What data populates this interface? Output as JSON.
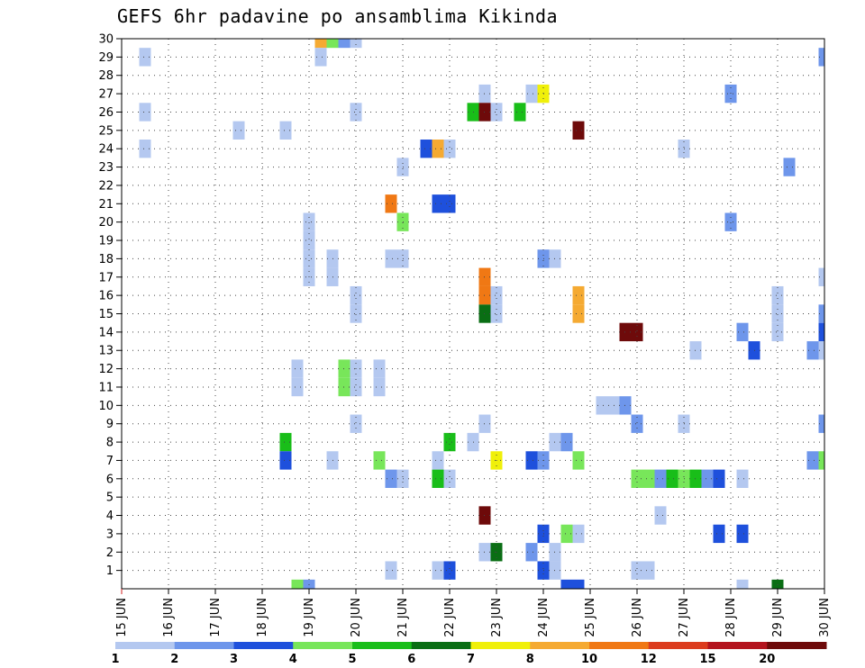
{
  "chart_data": {
    "type": "heatmap",
    "title": "GEFS 6hr padavine po ansamblima Kikinda",
    "members": [
      1,
      2,
      3,
      4,
      5,
      6,
      7,
      8,
      9,
      10,
      11,
      12,
      13,
      14,
      15,
      16,
      17,
      18,
      19,
      20,
      21,
      22,
      23,
      24,
      25,
      26,
      27,
      28,
      29,
      30
    ],
    "date_ticks": [
      "15 JUN",
      "16 JUN",
      "17 JUN",
      "18 JUN",
      "19 JUN",
      "20 JUN",
      "21 JUN",
      "22 JUN",
      "23 JUN",
      "24 JUN",
      "25 JUN",
      "26 JUN",
      "27 JUN",
      "28 JUN",
      "29 JUN",
      "30 JUN"
    ],
    "x_range_days": [
      0,
      15
    ],
    "legend": {
      "labels": [
        "1",
        "2",
        "3",
        "4",
        "5",
        "6",
        "7",
        "8",
        "10",
        "12",
        "15",
        "20"
      ],
      "colors": [
        "#b4c8f0",
        "#6e96eb",
        "#1e50dc",
        "#78e65a",
        "#19be19",
        "#0a6e14",
        "#f0f00a",
        "#f5aa32",
        "#f07814",
        "#dc3c1e",
        "#b4141e",
        "#6e0a0a"
      ]
    },
    "cells": [
      {
        "m": 30,
        "t": 4.25,
        "c": 8
      },
      {
        "m": 30,
        "t": 4.5,
        "c": 4
      },
      {
        "m": 30,
        "t": 4.75,
        "c": 2
      },
      {
        "m": 30,
        "t": 5.0,
        "c": 1
      },
      {
        "m": 29,
        "t": 0.5,
        "c": 1
      },
      {
        "m": 29,
        "t": 4.25,
        "c": 1
      },
      {
        "m": 29,
        "t": 15.0,
        "c": 2
      },
      {
        "m": 27,
        "t": 7.75,
        "c": 1
      },
      {
        "m": 27,
        "t": 8.75,
        "c": 1
      },
      {
        "m": 27,
        "t": 9.0,
        "c": 7
      },
      {
        "m": 27,
        "t": 13.0,
        "c": 2
      },
      {
        "m": 26,
        "t": 0.5,
        "c": 1
      },
      {
        "m": 26,
        "t": 5.0,
        "c": 1
      },
      {
        "m": 26,
        "t": 7.5,
        "c": 5
      },
      {
        "m": 26,
        "t": 7.75,
        "c": 12
      },
      {
        "m": 26,
        "t": 8.0,
        "c": 1
      },
      {
        "m": 26,
        "t": 8.5,
        "c": 5
      },
      {
        "m": 25,
        "t": 2.5,
        "c": 1
      },
      {
        "m": 25,
        "t": 3.5,
        "c": 1
      },
      {
        "m": 25,
        "t": 9.75,
        "c": 12
      },
      {
        "m": 24,
        "t": 0.5,
        "c": 1
      },
      {
        "m": 24,
        "t": 6.5,
        "c": 3
      },
      {
        "m": 24,
        "t": 6.75,
        "c": 8
      },
      {
        "m": 24,
        "t": 7.0,
        "c": 1
      },
      {
        "m": 24,
        "t": 12.0,
        "c": 1
      },
      {
        "m": 23,
        "t": 6.0,
        "c": 1
      },
      {
        "m": 23,
        "t": 14.25,
        "c": 2
      },
      {
        "m": 21,
        "t": 5.75,
        "c": 9
      },
      {
        "m": 21,
        "t": 6.75,
        "c": 3
      },
      {
        "m": 21,
        "t": 7.0,
        "c": 3
      },
      {
        "m": 20,
        "t": 4.0,
        "c": 1
      },
      {
        "m": 20,
        "t": 6.0,
        "c": 4
      },
      {
        "m": 20,
        "t": 13.0,
        "c": 2
      },
      {
        "m": 19,
        "t": 4.0,
        "c": 1
      },
      {
        "m": 18,
        "t": 5.75,
        "c": 1
      },
      {
        "m": 18,
        "t": 6.0,
        "c": 1
      },
      {
        "m": 18,
        "t": 4.0,
        "c": 1
      },
      {
        "m": 18,
        "t": 4.5,
        "c": 1
      },
      {
        "m": 18,
        "t": 9.0,
        "c": 2
      },
      {
        "m": 18,
        "t": 9.25,
        "c": 1
      },
      {
        "m": 17,
        "t": 4.0,
        "c": 1
      },
      {
        "m": 17,
        "t": 4.5,
        "c": 1
      },
      {
        "m": 17,
        "t": 7.75,
        "c": 9
      },
      {
        "m": 17,
        "t": 15.0,
        "c": 1
      },
      {
        "m": 16,
        "t": 7.75,
        "c": 9
      },
      {
        "m": 16,
        "t": 8.0,
        "c": 1
      },
      {
        "m": 16,
        "t": 5.0,
        "c": 1
      },
      {
        "m": 16,
        "t": 9.75,
        "c": 8
      },
      {
        "m": 16,
        "t": 14.0,
        "c": 1
      },
      {
        "m": 15,
        "t": 7.75,
        "c": 6
      },
      {
        "m": 15,
        "t": 8.0,
        "c": 1
      },
      {
        "m": 15,
        "t": 5.0,
        "c": 1
      },
      {
        "m": 15,
        "t": 9.75,
        "c": 8
      },
      {
        "m": 15,
        "t": 14.0,
        "c": 1
      },
      {
        "m": 15,
        "t": 15.0,
        "c": 2
      },
      {
        "m": 14,
        "t": 10.75,
        "c": 12
      },
      {
        "m": 14,
        "t": 11.0,
        "c": 12
      },
      {
        "m": 14,
        "t": 13.25,
        "c": 2
      },
      {
        "m": 14,
        "t": 14.0,
        "c": 1
      },
      {
        "m": 14,
        "t": 15.0,
        "c": 3
      },
      {
        "m": 13,
        "t": 12.25,
        "c": 1
      },
      {
        "m": 13,
        "t": 13.5,
        "c": 3
      },
      {
        "m": 13,
        "t": 14.75,
        "c": 2
      },
      {
        "m": 13,
        "t": 15.0,
        "c": 1
      },
      {
        "m": 12,
        "t": 3.75,
        "c": 1
      },
      {
        "m": 12,
        "t": 4.75,
        "c": 4
      },
      {
        "m": 12,
        "t": 5.0,
        "c": 1
      },
      {
        "m": 12,
        "t": 5.5,
        "c": 1
      },
      {
        "m": 11,
        "t": 3.75,
        "c": 1
      },
      {
        "m": 11,
        "t": 4.75,
        "c": 4
      },
      {
        "m": 11,
        "t": 5.0,
        "c": 1
      },
      {
        "m": 11,
        "t": 5.5,
        "c": 1
      },
      {
        "m": 10,
        "t": 10.25,
        "c": 1
      },
      {
        "m": 10,
        "t": 10.5,
        "c": 1
      },
      {
        "m": 10,
        "t": 10.75,
        "c": 2
      },
      {
        "m": 9,
        "t": 5.0,
        "c": 1
      },
      {
        "m": 9,
        "t": 7.75,
        "c": 1
      },
      {
        "m": 9,
        "t": 11.0,
        "c": 2
      },
      {
        "m": 9,
        "t": 12.0,
        "c": 1
      },
      {
        "m": 9,
        "t": 15.0,
        "c": 2
      },
      {
        "m": 8,
        "t": 3.5,
        "c": 5
      },
      {
        "m": 8,
        "t": 7.0,
        "c": 5
      },
      {
        "m": 8,
        "t": 7.5,
        "c": 1
      },
      {
        "m": 8,
        "t": 9.25,
        "c": 1
      },
      {
        "m": 8,
        "t": 9.5,
        "c": 2
      },
      {
        "m": 7,
        "t": 3.5,
        "c": 3
      },
      {
        "m": 7,
        "t": 4.5,
        "c": 1
      },
      {
        "m": 7,
        "t": 5.5,
        "c": 4
      },
      {
        "m": 7,
        "t": 6.75,
        "c": 1
      },
      {
        "m": 7,
        "t": 8.0,
        "c": 7
      },
      {
        "m": 7,
        "t": 8.75,
        "c": 3
      },
      {
        "m": 7,
        "t": 9.0,
        "c": 2
      },
      {
        "m": 7,
        "t": 9.75,
        "c": 4
      },
      {
        "m": 7,
        "t": 14.75,
        "c": 2
      },
      {
        "m": 7,
        "t": 15.0,
        "c": 4
      },
      {
        "m": 6,
        "t": 5.75,
        "c": 2
      },
      {
        "m": 6,
        "t": 6.0,
        "c": 1
      },
      {
        "m": 6,
        "t": 6.75,
        "c": 5
      },
      {
        "m": 6,
        "t": 7.0,
        "c": 1
      },
      {
        "m": 6,
        "t": 11.0,
        "c": 4
      },
      {
        "m": 6,
        "t": 11.25,
        "c": 4
      },
      {
        "m": 6,
        "t": 11.5,
        "c": 2
      },
      {
        "m": 6,
        "t": 11.75,
        "c": 5
      },
      {
        "m": 6,
        "t": 12.0,
        "c": 4
      },
      {
        "m": 6,
        "t": 12.25,
        "c": 5
      },
      {
        "m": 6,
        "t": 12.5,
        "c": 2
      },
      {
        "m": 6,
        "t": 12.75,
        "c": 3
      },
      {
        "m": 6,
        "t": 13.25,
        "c": 1
      },
      {
        "m": 4,
        "t": 7.75,
        "c": 12
      },
      {
        "m": 4,
        "t": 11.5,
        "c": 1
      },
      {
        "m": 3,
        "t": 9.0,
        "c": 3
      },
      {
        "m": 3,
        "t": 9.5,
        "c": 4
      },
      {
        "m": 3,
        "t": 9.75,
        "c": 1
      },
      {
        "m": 3,
        "t": 12.75,
        "c": 3
      },
      {
        "m": 3,
        "t": 13.25,
        "c": 3
      },
      {
        "m": 2,
        "t": 7.75,
        "c": 1
      },
      {
        "m": 2,
        "t": 8.0,
        "c": 6
      },
      {
        "m": 2,
        "t": 8.75,
        "c": 2
      },
      {
        "m": 2,
        "t": 9.25,
        "c": 1
      },
      {
        "m": 1,
        "t": 5.75,
        "c": 1
      },
      {
        "m": 1,
        "t": 6.75,
        "c": 1
      },
      {
        "m": 1,
        "t": 7.0,
        "c": 3
      },
      {
        "m": 1,
        "t": 9.0,
        "c": 3
      },
      {
        "m": 1,
        "t": 9.25,
        "c": 1
      },
      {
        "m": 1,
        "t": 11.0,
        "c": 1
      },
      {
        "m": 1,
        "t": 11.25,
        "c": 1
      },
      {
        "m": 0,
        "t": 3.75,
        "c": 4
      },
      {
        "m": 0,
        "t": 4.0,
        "c": 2
      },
      {
        "m": 0,
        "t": 9.5,
        "c": 3
      },
      {
        "m": 0,
        "t": 9.75,
        "c": 3
      },
      {
        "m": 0,
        "t": 13.25,
        "c": 1
      },
      {
        "m": 0,
        "t": 14.0,
        "c": 6
      }
    ]
  }
}
